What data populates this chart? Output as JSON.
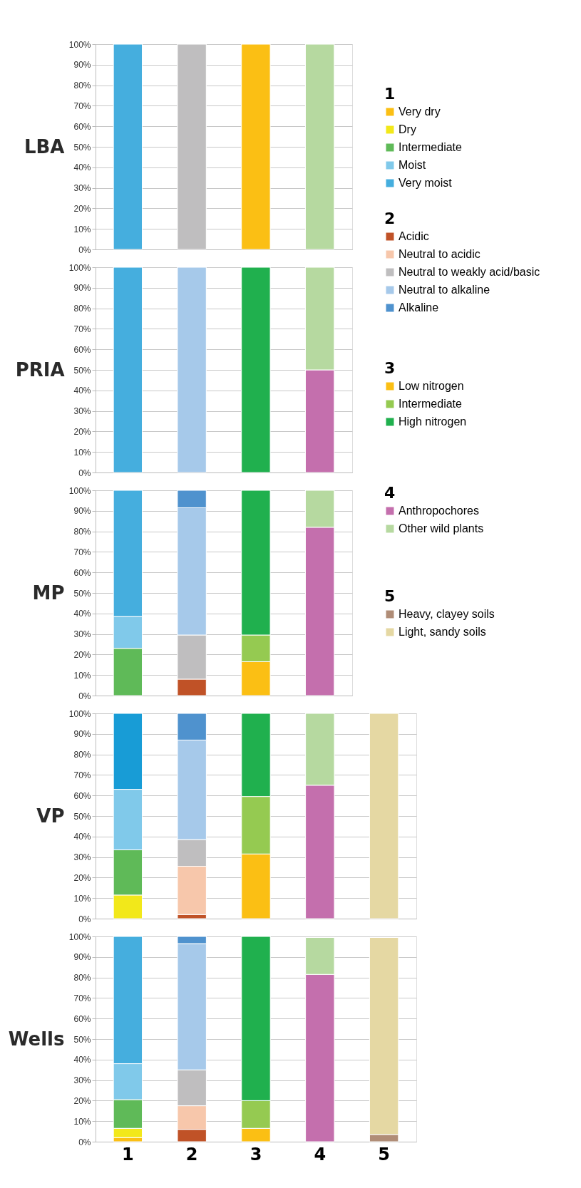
{
  "chart_data": [
    {
      "type": "bar",
      "stacked": true,
      "ylabel": "LBA",
      "categories": [
        "1",
        "2",
        "3",
        "4"
      ],
      "ylim": [
        0,
        100
      ],
      "yticks": [
        {
          "value": 0,
          "label": "0%"
        },
        {
          "value": 10,
          "label": "10%"
        },
        {
          "value": 20,
          "label": "20%"
        },
        {
          "value": 30,
          "label": "30%"
        },
        {
          "value": 40,
          "label": "40%"
        },
        {
          "value": 50,
          "label": "50%"
        },
        {
          "value": 60,
          "label": "60%"
        },
        {
          "value": 70,
          "label": "70%"
        },
        {
          "value": 80,
          "label": "80%"
        },
        {
          "value": 90,
          "label": "90%"
        },
        {
          "value": 100,
          "label": "100%"
        }
      ],
      "grid": "y",
      "tick_labels": "y",
      "legend": "right",
      "series": [
        {
          "name": "Very dry",
          "color": "#fbbf14",
          "values": [
            null,
            null,
            null,
            null
          ]
        },
        {
          "name": "Dry",
          "color": "#f2e81a",
          "values": [
            null,
            null,
            null,
            null
          ]
        },
        {
          "name": "Intermediate",
          "color": "#5fba58",
          "values": [
            null,
            null,
            null,
            null
          ]
        },
        {
          "name": "Moist",
          "color": "#80c9ea",
          "values": [
            null,
            null,
            null,
            null
          ]
        },
        {
          "name": "Very moist",
          "color": "#45aede",
          "values": [
            100,
            null,
            null,
            null
          ]
        },
        {
          "name": "Acidic",
          "color": "#c05227",
          "values": [
            null,
            null,
            null,
            null
          ]
        },
        {
          "name": "Neutral to acidic",
          "color": "#f7c7ab",
          "values": [
            null,
            null,
            null,
            null
          ]
        },
        {
          "name": "Neutral to weakly acid/basic",
          "color": "#bfbebf",
          "values": [
            null,
            100,
            null,
            null
          ]
        },
        {
          "name": "Neutral to alkaline",
          "color": "#a6c9ea",
          "values": [
            null,
            null,
            null,
            null
          ]
        },
        {
          "name": "Alkaline",
          "color": "#4f92ce",
          "values": [
            null,
            null,
            null,
            null
          ]
        },
        {
          "name": "Low nitrogen",
          "color": "#fbbf14",
          "values": [
            null,
            null,
            100,
            null
          ]
        },
        {
          "name": "Intermediate",
          "color": "#95ca51",
          "values": [
            null,
            null,
            null,
            null
          ]
        },
        {
          "name": "High nitrogen",
          "color": "#20b04e",
          "values": [
            null,
            null,
            null,
            null
          ]
        },
        {
          "name": "Anthropochores",
          "color": "#c46fad",
          "values": [
            null,
            null,
            null,
            null
          ]
        },
        {
          "name": "Other wild plants",
          "color": "#b6d9a0",
          "values": [
            null,
            null,
            null,
            100
          ]
        },
        {
          "name": "Heavy, clayey soils",
          "color": "#b08d77",
          "values": [
            null,
            null,
            null,
            null
          ]
        },
        {
          "name": "Light, sandy soils",
          "color": "#e5d8a3",
          "values": [
            null,
            null,
            null,
            null
          ]
        }
      ]
    },
    {
      "type": "bar",
      "stacked": true,
      "ylabel": "PRIA",
      "categories": [
        "1",
        "2",
        "3",
        "4"
      ],
      "ylim": [
        0,
        100
      ],
      "yticks": [
        {
          "value": 0,
          "label": "0%"
        },
        {
          "value": 10,
          "label": "10%"
        },
        {
          "value": 20,
          "label": "20%"
        },
        {
          "value": 30,
          "label": "30%"
        },
        {
          "value": 40,
          "label": "40%"
        },
        {
          "value": 50,
          "label": "50%"
        },
        {
          "value": 60,
          "label": "60%"
        },
        {
          "value": 70,
          "label": "70%"
        },
        {
          "value": 80,
          "label": "80%"
        },
        {
          "value": 90,
          "label": "90%"
        },
        {
          "value": 100,
          "label": "100%"
        }
      ],
      "grid": "y",
      "tick_labels": "y",
      "series": [
        {
          "color": "#fbbf14",
          "values": [
            null,
            null,
            null,
            null
          ]
        },
        {
          "color": "#f2e81a",
          "values": [
            null,
            null,
            null,
            null
          ]
        },
        {
          "color": "#5fba58",
          "values": [
            null,
            null,
            null,
            null
          ]
        },
        {
          "color": "#80c9ea",
          "values": [
            null,
            null,
            null,
            null
          ]
        },
        {
          "color": "#45aede",
          "values": [
            100,
            null,
            null,
            null
          ]
        },
        {
          "color": "#c05227",
          "values": [
            null,
            null,
            null,
            null
          ]
        },
        {
          "color": "#f7c7ab",
          "values": [
            null,
            null,
            null,
            null
          ]
        },
        {
          "color": "#bfbebf",
          "values": [
            null,
            null,
            null,
            null
          ]
        },
        {
          "color": "#a6c9ea",
          "values": [
            null,
            100,
            null,
            null
          ]
        },
        {
          "color": "#4f92ce",
          "values": [
            null,
            null,
            null,
            null
          ]
        },
        {
          "color": "#fbbf14",
          "values": [
            null,
            null,
            null,
            null
          ]
        },
        {
          "color": "#95ca51",
          "values": [
            null,
            null,
            null,
            null
          ]
        },
        {
          "color": "#20b04e",
          "values": [
            null,
            null,
            100,
            null
          ]
        },
        {
          "color": "#c46fad",
          "values": [
            null,
            null,
            null,
            50
          ]
        },
        {
          "color": "#b6d9a0",
          "values": [
            null,
            null,
            null,
            50
          ]
        },
        {
          "values": [
            null,
            null,
            null,
            null
          ]
        },
        {
          "values": [
            null,
            null,
            null,
            null
          ]
        }
      ]
    },
    {
      "type": "bar",
      "stacked": true,
      "ylabel": "MP",
      "categories": [
        "1",
        "2",
        "3",
        "4"
      ],
      "ylim": [
        0,
        100
      ],
      "yticks": [
        {
          "value": 0,
          "label": "0%"
        },
        {
          "value": 10,
          "label": "10%"
        },
        {
          "value": 20,
          "label": "20%"
        },
        {
          "value": 30,
          "label": "30%"
        },
        {
          "value": 40,
          "label": "40%"
        },
        {
          "value": 50,
          "label": "50%"
        },
        {
          "value": 60,
          "label": "60%"
        },
        {
          "value": 70,
          "label": "70%"
        },
        {
          "value": 80,
          "label": "80%"
        },
        {
          "value": 90,
          "label": "90%"
        },
        {
          "value": 100,
          "label": "100%"
        }
      ],
      "grid": "y",
      "tick_labels": "y",
      "series": [
        {
          "color": "#fbbf14",
          "values": [
            null,
            null,
            null,
            null
          ]
        },
        {
          "color": "#f2e81a",
          "values": [
            null,
            null,
            null,
            null
          ]
        },
        {
          "color": "#5fba58",
          "values": [
            23,
            null,
            null,
            null
          ]
        },
        {
          "color": "#80c9ea",
          "values": [
            15.5,
            null,
            null,
            null
          ]
        },
        {
          "color": "#45aede",
          "values": [
            61.5,
            null,
            null,
            null
          ]
        },
        {
          "color": "#c05227",
          "values": [
            null,
            8,
            null,
            null
          ]
        },
        {
          "color": "#f7c7ab",
          "values": [
            null,
            null,
            null,
            null
          ]
        },
        {
          "color": "#bfbebf",
          "values": [
            null,
            21.5,
            null,
            null
          ]
        },
        {
          "color": "#a6c9ea",
          "values": [
            null,
            62,
            null,
            null
          ]
        },
        {
          "color": "#4f92ce",
          "values": [
            null,
            8.5,
            null,
            null
          ]
        },
        {
          "color": "#fbbf14",
          "values": [
            null,
            null,
            16.5,
            null
          ]
        },
        {
          "color": "#95ca51",
          "values": [
            null,
            null,
            13,
            null
          ]
        },
        {
          "color": "#20b04e",
          "values": [
            null,
            null,
            70.5,
            null
          ]
        },
        {
          "color": "#c46fad",
          "values": [
            null,
            null,
            null,
            82
          ]
        },
        {
          "color": "#b6d9a0",
          "values": [
            null,
            null,
            null,
            18
          ]
        },
        {
          "values": [
            null,
            null,
            null,
            null
          ]
        },
        {
          "values": [
            null,
            null,
            null,
            null
          ]
        }
      ]
    },
    {
      "type": "bar",
      "stacked": true,
      "ylabel": "VP",
      "categories": [
        "1",
        "2",
        "3",
        "4",
        "5"
      ],
      "ylim": [
        0,
        100
      ],
      "yticks": [
        {
          "value": 0,
          "label": "0%"
        },
        {
          "value": 10,
          "label": "10%"
        },
        {
          "value": 20,
          "label": "20%"
        },
        {
          "value": 30,
          "label": "30%"
        },
        {
          "value": 40,
          "label": "40%"
        },
        {
          "value": 50,
          "label": "50%"
        },
        {
          "value": 60,
          "label": "60%"
        },
        {
          "value": 70,
          "label": "70%"
        },
        {
          "value": 80,
          "label": "80%"
        },
        {
          "value": 90,
          "label": "90%"
        },
        {
          "value": 100,
          "label": "100%"
        }
      ],
      "grid": "y",
      "tick_labels": "y",
      "series": [
        {
          "color": "#fbbf14",
          "values": [
            null,
            null,
            null,
            null,
            null
          ]
        },
        {
          "color": "#f2e81a",
          "values": [
            11.5,
            null,
            null,
            null,
            null
          ]
        },
        {
          "color": "#5fba58",
          "values": [
            22,
            null,
            null,
            null,
            null
          ]
        },
        {
          "color": "#80c9ea",
          "values": [
            29.5,
            null,
            null,
            null,
            null
          ]
        },
        {
          "color": "#189cd6",
          "values": [
            37,
            null,
            null,
            null,
            null
          ]
        },
        {
          "color": "#c05227",
          "values": [
            null,
            2,
            null,
            null,
            null
          ]
        },
        {
          "color": "#f7c7ab",
          "values": [
            null,
            23.5,
            null,
            null,
            null
          ]
        },
        {
          "color": "#bfbebf",
          "values": [
            null,
            13,
            null,
            null,
            null
          ]
        },
        {
          "color": "#a6c9ea",
          "values": [
            null,
            48.5,
            null,
            null,
            null
          ]
        },
        {
          "color": "#4f92ce",
          "values": [
            null,
            13,
            null,
            null,
            null
          ]
        },
        {
          "color": "#fbbf14",
          "values": [
            null,
            null,
            31.5,
            null,
            null
          ]
        },
        {
          "color": "#95ca51",
          "values": [
            null,
            null,
            28,
            null,
            null
          ]
        },
        {
          "color": "#20b04e",
          "values": [
            null,
            null,
            40.5,
            null,
            null
          ]
        },
        {
          "color": "#c46fad",
          "values": [
            null,
            null,
            null,
            65,
            null
          ]
        },
        {
          "color": "#b6d9a0",
          "values": [
            null,
            null,
            null,
            35,
            null
          ]
        },
        {
          "color": "#b08d77",
          "values": [
            null,
            null,
            null,
            null,
            null
          ]
        },
        {
          "color": "#e5d8a3",
          "values": [
            null,
            null,
            null,
            null,
            100
          ]
        }
      ]
    },
    {
      "type": "bar",
      "stacked": true,
      "ylabel": "Wells",
      "categories": [
        "1",
        "2",
        "3",
        "4",
        "5"
      ],
      "ylim": [
        0,
        100
      ],
      "yticks": [
        {
          "value": 0,
          "label": "0%"
        },
        {
          "value": 10,
          "label": "10%"
        },
        {
          "value": 20,
          "label": "20%"
        },
        {
          "value": 30,
          "label": "30%"
        },
        {
          "value": 40,
          "label": "40%"
        },
        {
          "value": 50,
          "label": "50%"
        },
        {
          "value": 60,
          "label": "60%"
        },
        {
          "value": 70,
          "label": "70%"
        },
        {
          "value": 80,
          "label": "80%"
        },
        {
          "value": 90,
          "label": "90%"
        },
        {
          "value": 100,
          "label": "100%"
        }
      ],
      "grid": "y",
      "series": [
        {
          "color": "#fbbf14",
          "values": [
            2,
            null,
            null,
            null,
            null
          ]
        },
        {
          "color": "#f2e81a",
          "values": [
            4.5,
            null,
            null,
            null,
            null
          ]
        },
        {
          "color": "#5fba58",
          "values": [
            14,
            null,
            null,
            null,
            null
          ]
        },
        {
          "color": "#80c9ea",
          "values": [
            17.5,
            null,
            null,
            null,
            null
          ]
        },
        {
          "color": "#45aede",
          "values": [
            62,
            null,
            null,
            null,
            null
          ]
        },
        {
          "color": "#c05227",
          "values": [
            null,
            6,
            null,
            null,
            null
          ]
        },
        {
          "color": "#f7c7ab",
          "values": [
            null,
            11.5,
            null,
            null,
            null
          ]
        },
        {
          "color": "#bfbebf",
          "values": [
            null,
            17.5,
            null,
            null,
            null
          ]
        },
        {
          "color": "#a6c9ea",
          "values": [
            null,
            61.5,
            null,
            null,
            null
          ]
        },
        {
          "color": "#4f92ce",
          "values": [
            null,
            3.5,
            null,
            null,
            null
          ]
        },
        {
          "color": "#fbbf14",
          "values": [
            null,
            null,
            6.5,
            null,
            null
          ]
        },
        {
          "color": "#95ca51",
          "values": [
            null,
            null,
            13.5,
            null,
            null
          ]
        },
        {
          "color": "#20b04e",
          "values": [
            null,
            null,
            80,
            null,
            null
          ]
        },
        {
          "color": "#c46fad",
          "values": [
            null,
            null,
            null,
            81.5,
            null
          ]
        },
        {
          "color": "#b6d9a0",
          "values": [
            null,
            null,
            null,
            18,
            null
          ]
        },
        {
          "color": "#b08d77",
          "values": [
            null,
            null,
            null,
            null,
            3.5
          ]
        },
        {
          "color": "#e5d8a3",
          "values": [
            null,
            null,
            null,
            null,
            96
          ]
        }
      ]
    }
  ]
}
